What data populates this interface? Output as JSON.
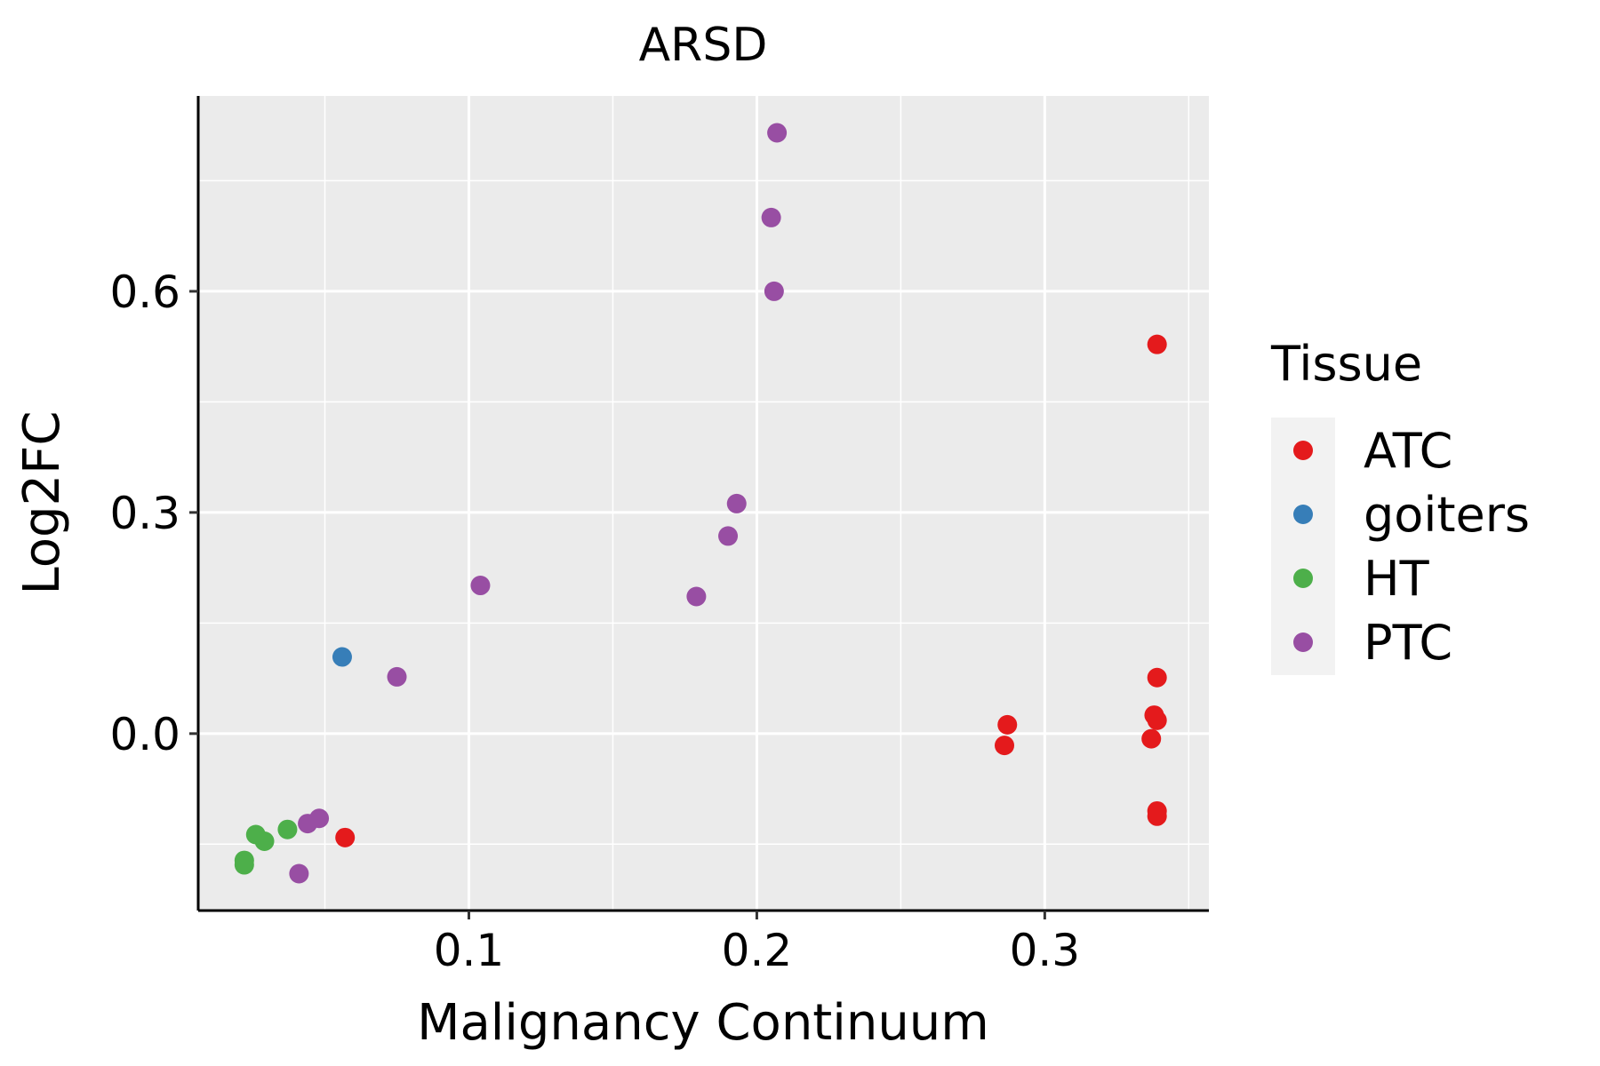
{
  "chart_data": {
    "type": "scatter",
    "title": "ARSD",
    "xlabel": "Malignancy Continuum",
    "ylabel": "Log2FC",
    "xlim": [
      0.006,
      0.357
    ],
    "ylim": [
      -0.24,
      0.865
    ],
    "x_ticks": [
      0.1,
      0.2,
      0.3
    ],
    "x_tick_labels": [
      "0.1",
      "0.2",
      "0.3"
    ],
    "y_ticks": [
      0.0,
      0.3,
      0.6
    ],
    "y_tick_labels": [
      "0.0",
      "0.3",
      "0.6"
    ],
    "grid": true,
    "legend": {
      "title": "Tissue",
      "position": "right"
    },
    "series": [
      {
        "name": "ATC",
        "color": "#E41A1C",
        "points": [
          {
            "x": 0.339,
            "y": 0.528
          },
          {
            "x": 0.339,
            "y": 0.076
          },
          {
            "x": 0.338,
            "y": 0.025
          },
          {
            "x": 0.339,
            "y": 0.018
          },
          {
            "x": 0.337,
            "y": -0.007
          },
          {
            "x": 0.339,
            "y": -0.105
          },
          {
            "x": 0.339,
            "y": -0.112
          },
          {
            "x": 0.287,
            "y": 0.012
          },
          {
            "x": 0.286,
            "y": -0.016
          },
          {
            "x": 0.057,
            "y": -0.141
          }
        ]
      },
      {
        "name": "goiters",
        "color": "#377EB8",
        "points": [
          {
            "x": 0.056,
            "y": 0.104
          }
        ]
      },
      {
        "name": "HT",
        "color": "#4DAF4A",
        "points": [
          {
            "x": 0.022,
            "y": -0.172
          },
          {
            "x": 0.022,
            "y": -0.178
          },
          {
            "x": 0.026,
            "y": -0.137
          },
          {
            "x": 0.029,
            "y": -0.146
          },
          {
            "x": 0.037,
            "y": -0.13
          }
        ]
      },
      {
        "name": "PTC",
        "color": "#984EA3",
        "points": [
          {
            "x": 0.207,
            "y": 0.815
          },
          {
            "x": 0.205,
            "y": 0.7
          },
          {
            "x": 0.206,
            "y": 0.6
          },
          {
            "x": 0.193,
            "y": 0.312
          },
          {
            "x": 0.19,
            "y": 0.268
          },
          {
            "x": 0.179,
            "y": 0.186
          },
          {
            "x": 0.104,
            "y": 0.201
          },
          {
            "x": 0.075,
            "y": 0.077
          },
          {
            "x": 0.048,
            "y": -0.115
          },
          {
            "x": 0.044,
            "y": -0.122
          },
          {
            "x": 0.041,
            "y": -0.19
          }
        ]
      }
    ]
  }
}
